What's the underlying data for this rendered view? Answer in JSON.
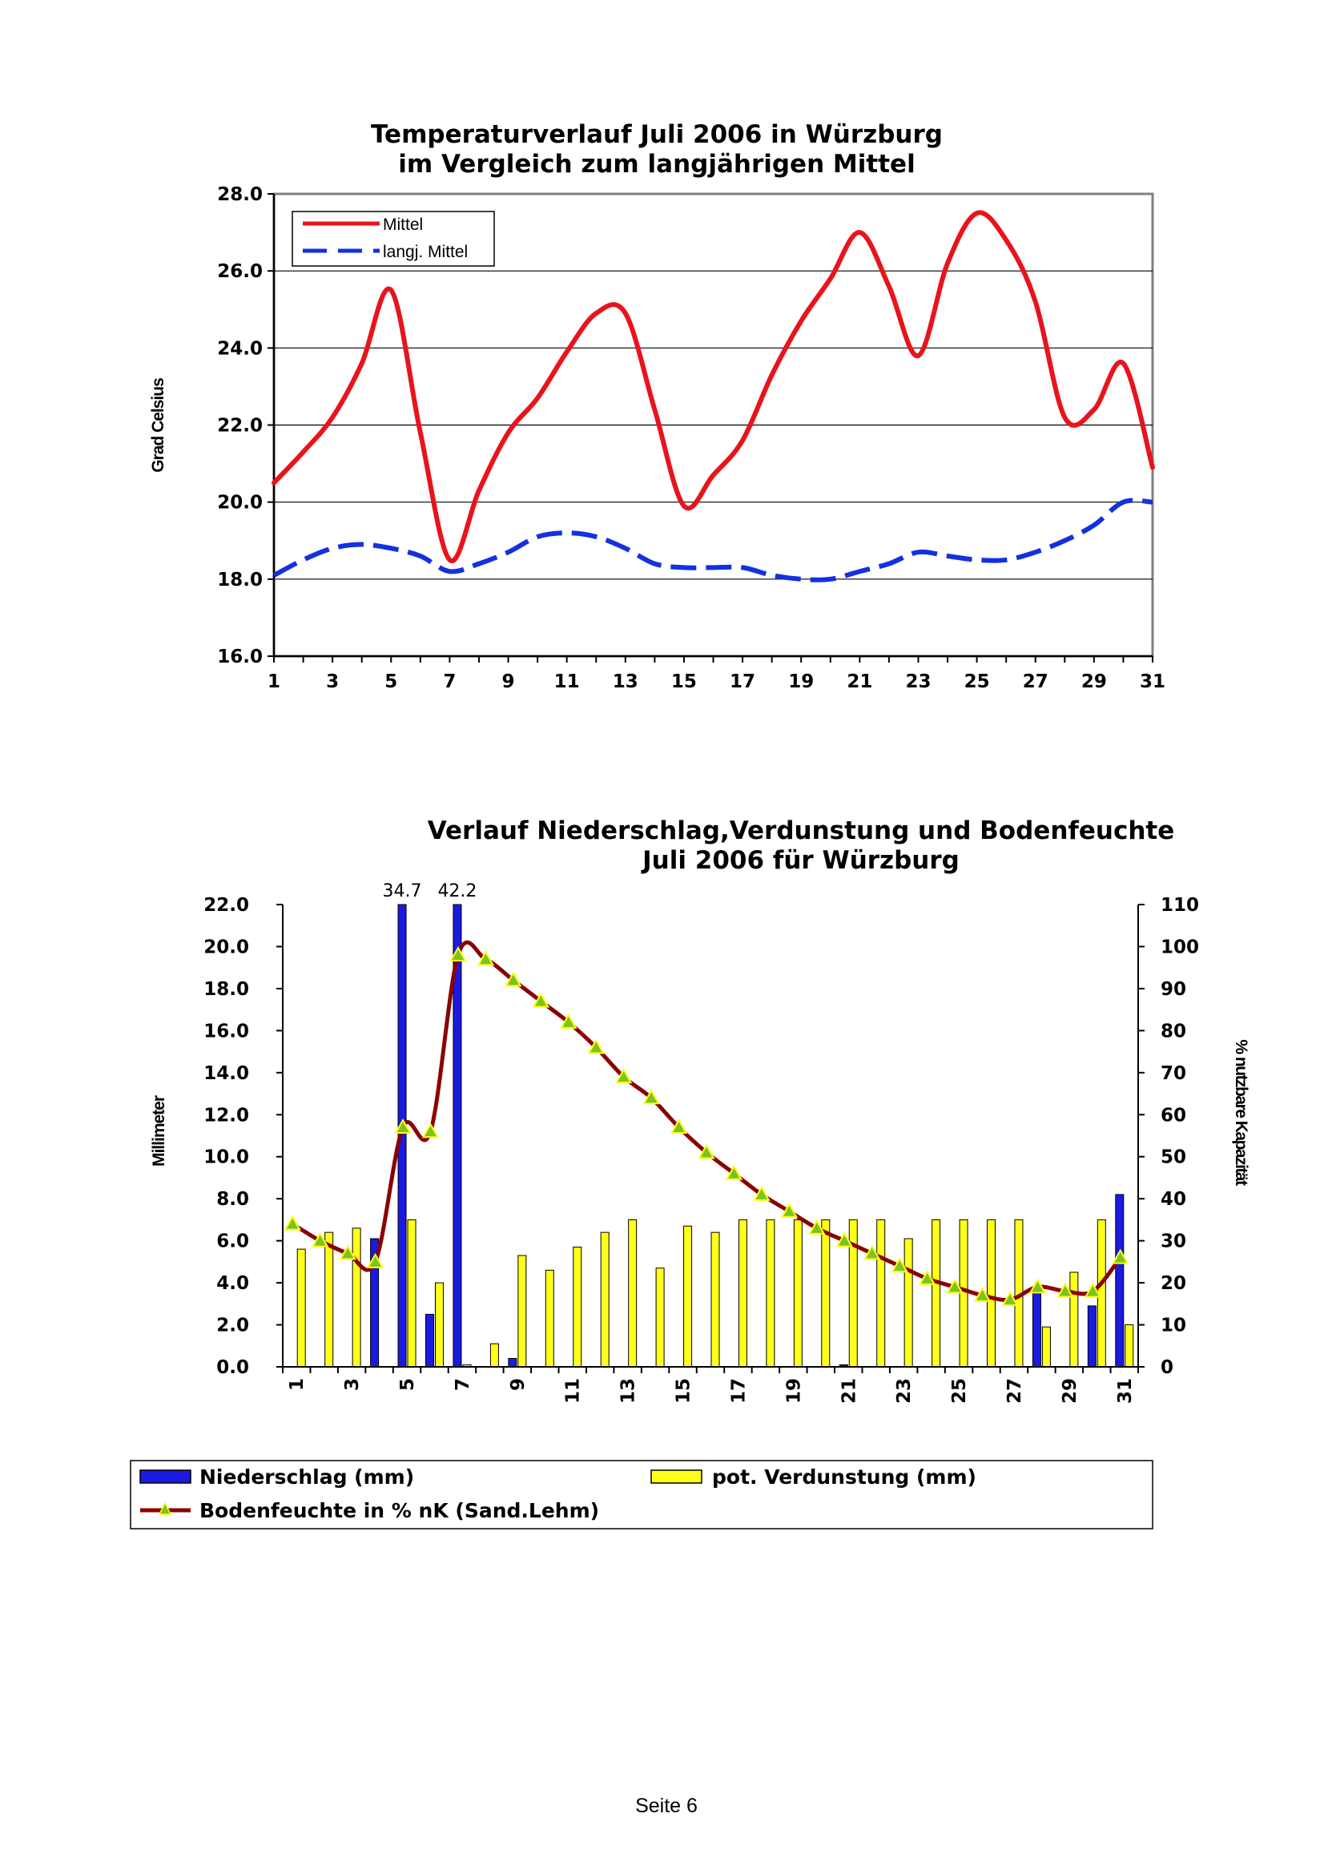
{
  "page": {
    "footer": "Seite 6"
  },
  "chart_data": [
    {
      "type": "line",
      "title": "Temperaturverlauf Juli 2006 in Würzburg",
      "subtitle": "im Vergleich zum langjährigen Mittel",
      "ylabel": "Grad Celsius",
      "xlabel": "",
      "ylim": [
        16.0,
        28.0
      ],
      "yticks": [
        "16.0",
        "18.0",
        "20.0",
        "22.0",
        "24.0",
        "26.0",
        "28.0"
      ],
      "xtick_labels": [
        "1",
        "3",
        "5",
        "7",
        "9",
        "11",
        "13",
        "15",
        "17",
        "19",
        "21",
        "23",
        "25",
        "27",
        "29",
        "31"
      ],
      "grid": true,
      "legend_position": "top-left",
      "x": [
        1,
        2,
        3,
        4,
        5,
        6,
        7,
        8,
        9,
        10,
        11,
        12,
        13,
        14,
        15,
        16,
        17,
        18,
        19,
        20,
        21,
        22,
        23,
        24,
        25,
        26,
        27,
        28,
        29,
        30,
        31
      ],
      "series": [
        {
          "name": "Mittel",
          "color": "#e8141c",
          "style": "solid",
          "values": [
            20.5,
            21.3,
            22.2,
            23.6,
            25.5,
            21.8,
            18.5,
            20.3,
            21.8,
            22.7,
            23.9,
            24.9,
            24.9,
            22.4,
            19.9,
            20.7,
            21.6,
            23.3,
            24.7,
            25.8,
            27.0,
            25.6,
            23.8,
            26.2,
            27.5,
            26.8,
            25.2,
            22.2,
            22.4,
            23.6,
            20.9
          ]
        },
        {
          "name": "langj. Mittel",
          "color": "#1430e0",
          "style": "dashed",
          "values": [
            18.1,
            18.5,
            18.8,
            18.9,
            18.8,
            18.6,
            18.2,
            18.4,
            18.7,
            19.1,
            19.2,
            19.1,
            18.8,
            18.4,
            18.3,
            18.3,
            18.3,
            18.1,
            18.0,
            18.0,
            18.2,
            18.4,
            18.7,
            18.6,
            18.5,
            18.5,
            18.7,
            19.0,
            19.4,
            20.0,
            20.0
          ]
        }
      ]
    },
    {
      "type": "bar",
      "title": "Verlauf Niederschlag,Verdunstung und Bodenfeuchte",
      "subtitle": "Juli 2006 für Würzburg",
      "ylabel": "Millimeter",
      "y2label": "% nutzbare Kapazität",
      "ylim": [
        0.0,
        22.0
      ],
      "y2lim": [
        0,
        110
      ],
      "yticks": [
        "0.0",
        "2.0",
        "4.0",
        "6.0",
        "8.0",
        "10.0",
        "12.0",
        "14.0",
        "16.0",
        "18.0",
        "20.0",
        "22.0"
      ],
      "y2ticks": [
        "0",
        "10",
        "20",
        "30",
        "40",
        "50",
        "60",
        "70",
        "80",
        "90",
        "100",
        "110"
      ],
      "xtick_labels": [
        "1",
        "3",
        "5",
        "7",
        "9",
        "11",
        "13",
        "15",
        "17",
        "19",
        "21",
        "23",
        "25",
        "27",
        "29",
        "31"
      ],
      "grid": false,
      "legend_position": "bottom",
      "x": [
        1,
        2,
        3,
        4,
        5,
        6,
        7,
        8,
        9,
        10,
        11,
        12,
        13,
        14,
        15,
        16,
        17,
        18,
        19,
        20,
        21,
        22,
        23,
        24,
        25,
        26,
        27,
        28,
        29,
        30,
        31
      ],
      "series": [
        {
          "name": "Niederschlag (mm)",
          "color": "#1a1ae0",
          "kind": "bar",
          "axis": "left",
          "values": [
            0,
            0,
            0,
            6.1,
            34.7,
            2.5,
            42.2,
            0,
            0.4,
            0,
            0,
            0,
            0,
            0,
            0,
            0,
            0,
            0,
            0,
            0,
            0.1,
            0,
            0,
            0,
            0,
            0,
            0,
            3.6,
            0,
            2.9,
            8.2
          ],
          "value_labels": [
            "",
            "",
            "",
            "",
            "34.7",
            "",
            "42.2",
            "",
            "",
            "",
            "",
            "",
            "",
            "",
            "",
            "",
            "",
            "",
            "",
            "",
            "",
            "",
            "",
            "",
            "",
            "",
            "",
            "",
            "",
            "",
            ""
          ]
        },
        {
          "name": "pot. Verdunstung (mm)",
          "color": "#ffff1a",
          "kind": "bar",
          "axis": "left",
          "values": [
            5.6,
            6.4,
            6.6,
            0,
            7.0,
            4.0,
            0.1,
            1.1,
            5.3,
            4.6,
            5.7,
            6.4,
            7.0,
            4.7,
            6.7,
            6.4,
            7.0,
            7.0,
            7.0,
            7.0,
            7.0,
            7.0,
            6.1,
            7.0,
            7.0,
            7.0,
            7.0,
            1.9,
            4.5,
            7.0,
            2.0
          ]
        },
        {
          "name": "Bodenfeuchte in % nK (Sand.Lehm)",
          "color": "#8b0000",
          "marker_color": "#7cc41c",
          "kind": "line",
          "axis": "right",
          "values": [
            34,
            30,
            27,
            25,
            57,
            56,
            98,
            97,
            92,
            87,
            82,
            76,
            69,
            64,
            57,
            51,
            46,
            41,
            37,
            33,
            30,
            27,
            24,
            21,
            19,
            17,
            16,
            19,
            18,
            18,
            26
          ]
        }
      ]
    }
  ]
}
